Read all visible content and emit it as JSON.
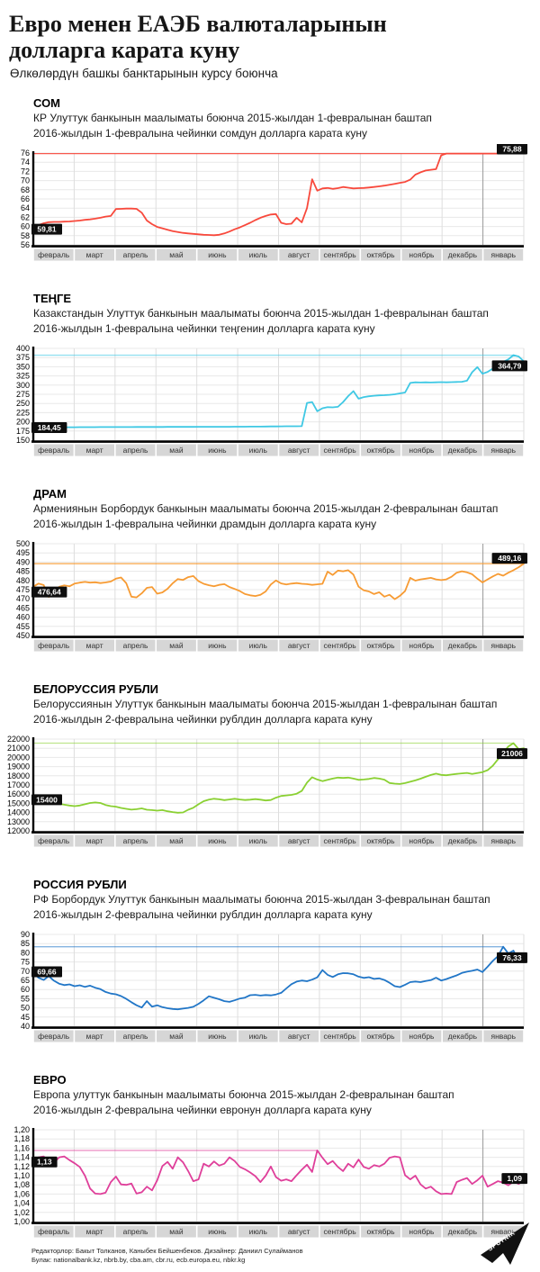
{
  "header": {
    "title_line1": "Евро менен ЕАЭБ валюталарынын",
    "title_line2": "долларга карата куну",
    "subtitle": "Өлкөлөрдүн башкы банктарынын курсу боюнча"
  },
  "months": [
    "февраль",
    "март",
    "апрель",
    "май",
    "июнь",
    "июль",
    "август",
    "сентябрь",
    "октябрь",
    "ноябрь",
    "декабрь",
    "январь"
  ],
  "chart_data": [
    {
      "type": "line",
      "title": "СОМ",
      "desc1": "КР Улуттук банкынын маалыматы боюнча 2015-жылдан 1-февралынан баштап",
      "desc2": "2016-жылдын 1-февралына чейинки сомдун долларга карата куну",
      "color": "#f8493c",
      "xlabel": "",
      "ylabel": "",
      "ylim": [
        56,
        76
      ],
      "ytick_labels": [
        "76",
        "74",
        "72",
        "70",
        "68",
        "66",
        "64",
        "62",
        "60",
        "58",
        "56"
      ],
      "start_label": "59,81",
      "end_label": "75,88",
      "start_dy": 2,
      "end_dy": -8,
      "values": [
        59.81,
        60.3,
        60.7,
        60.95,
        61.0,
        61.0,
        61.05,
        61.1,
        61.2,
        61.3,
        61.45,
        61.55,
        61.7,
        61.9,
        62.15,
        62.3,
        63.8,
        63.85,
        63.9,
        63.9,
        63.85,
        63.0,
        61.3,
        60.5,
        59.9,
        59.6,
        59.3,
        59.0,
        58.8,
        58.6,
        58.5,
        58.4,
        58.3,
        58.2,
        58.15,
        58.1,
        58.2,
        58.5,
        58.9,
        59.4,
        59.8,
        60.3,
        60.8,
        61.4,
        61.9,
        62.3,
        62.6,
        62.7,
        60.8,
        60.5,
        60.6,
        61.9,
        60.9,
        64.0,
        70.3,
        67.8,
        68.3,
        68.4,
        68.2,
        68.35,
        68.6,
        68.45,
        68.3,
        68.35,
        68.4,
        68.5,
        68.6,
        68.75,
        68.9,
        69.1,
        69.3,
        69.5,
        69.7,
        70.2,
        71.3,
        71.8,
        72.2,
        72.35,
        72.5,
        75.5,
        75.88,
        75.88,
        75.88,
        75.88,
        75.88,
        75.88,
        75.88,
        75.88,
        75.88,
        75.88,
        75.88,
        75.88,
        75.88,
        75.88,
        75.88,
        75.88
      ]
    },
    {
      "type": "line",
      "title": "ТЕҢГЕ",
      "desc1": "Казакстандын Улуттук банкынын маалыматы боюнча 2015-жылдан 1-февралынан баштап",
      "desc2": "2016-жылдын 1-февралына чейинки теңгенин долларга карата куну",
      "color": "#3fc8e4",
      "xlabel": "",
      "ylabel": "",
      "ylim": [
        150,
        400
      ],
      "ytick_labels": [
        "400",
        "375",
        "350",
        "325",
        "300",
        "275",
        "250",
        "225",
        "200",
        "175",
        "150"
      ],
      "start_label": "184,45",
      "end_label": "364,79",
      "start_dy": 0,
      "end_dy": 5,
      "values": [
        184.45,
        185.0,
        185.1,
        185.2,
        185.3,
        185.3,
        185.4,
        185.4,
        185.4,
        185.5,
        185.5,
        185.6,
        185.6,
        185.7,
        185.7,
        185.8,
        185.8,
        185.8,
        185.9,
        185.9,
        186.0,
        186.0,
        186.0,
        186.1,
        186.1,
        186.1,
        186.2,
        186.2,
        186.2,
        186.3,
        186.3,
        186.3,
        186.4,
        186.4,
        186.5,
        186.5,
        186.5,
        186.6,
        186.6,
        186.7,
        186.7,
        186.8,
        186.9,
        187.0,
        187.1,
        187.2,
        187.4,
        187.6,
        187.8,
        187.9,
        188.0,
        188.1,
        188.2,
        251.5,
        254.0,
        229.0,
        237.0,
        240.0,
        239.5,
        241.0,
        254.0,
        270.0,
        283.5,
        263.0,
        267.5,
        269.5,
        271.0,
        272.0,
        272.5,
        273.5,
        275.0,
        277.5,
        280.0,
        306.0,
        307.5,
        307.0,
        307.5,
        307.0,
        307.5,
        308.0,
        307.5,
        308.0,
        308.5,
        309.0,
        312.0,
        335.0,
        349.0,
        331.0,
        336.0,
        345.0,
        357.0,
        363.0,
        370.0,
        381.5,
        378.0,
        364.79
      ]
    },
    {
      "type": "line",
      "title": "ДРАМ",
      "desc1": "Армениянын Борбордук банкынын маалыматы боюнча 2015-жылдан 2-февралынан баштап",
      "desc2": "2016-жылдын 1-февралына чейинки драмдын долларга карата куну",
      "color": "#f79b33",
      "xlabel": "",
      "ylabel": "",
      "ylim": [
        450,
        500
      ],
      "ytick_labels": [
        "500",
        "495",
        "490",
        "485",
        "480",
        "475",
        "470",
        "465",
        "460",
        "455",
        "450"
      ],
      "start_label": "476,64",
      "end_label": "489,16",
      "start_dy": 6,
      "end_dy": -6,
      "values": [
        476.64,
        478.3,
        477.5,
        471.0,
        474.0,
        476.5,
        477.3,
        476.8,
        478.3,
        478.8,
        479.2,
        478.8,
        479.0,
        478.6,
        478.9,
        479.4,
        481.0,
        481.6,
        478.5,
        471.2,
        470.8,
        473.0,
        476.0,
        476.4,
        472.8,
        473.5,
        475.5,
        478.5,
        480.8,
        480.3,
        481.8,
        482.4,
        479.6,
        478.2,
        477.4,
        476.8,
        477.6,
        478.0,
        476.4,
        475.4,
        474.2,
        472.6,
        471.9,
        471.5,
        472.2,
        474.0,
        477.8,
        480.0,
        478.4,
        477.8,
        478.3,
        478.6,
        478.2,
        478.0,
        477.6,
        477.9,
        478.2,
        484.8,
        483.0,
        485.4,
        485.0,
        485.6,
        483.2,
        476.6,
        474.6,
        474.0,
        472.6,
        473.6,
        471.2,
        472.2,
        469.8,
        471.6,
        474.2,
        481.4,
        479.9,
        480.6,
        481.0,
        481.4,
        480.6,
        480.2,
        480.6,
        482.0,
        484.2,
        485.0,
        484.4,
        483.4,
        481.0,
        478.9,
        480.6,
        482.2,
        483.6,
        482.6,
        484.2,
        485.6,
        487.2,
        489.16
      ]
    },
    {
      "type": "line",
      "title": "БЕЛОРУССИЯ РУБЛИ",
      "desc1": "Белоруссиянын Улуттук банкынын маалыматы боюнча 2015-жылдан 1-февралынан баштап",
      "desc2": "2016-жылдын 2-февралына чейинки рублдин долларга карата куну",
      "color": "#8ad032",
      "xlabel": "",
      "ylabel": "",
      "ylim": [
        12000,
        22000
      ],
      "ytick_labels": [
        "22000",
        "21000",
        "20000",
        "19000",
        "18000",
        "17000",
        "16000",
        "15000",
        "14000",
        "13000",
        "12000"
      ],
      "start_label": "15400",
      "end_label": "21006",
      "start_dy": 0,
      "end_dy": 6,
      "values": [
        15400,
        15320,
        15200,
        15150,
        15080,
        14950,
        14850,
        14760,
        14700,
        14760,
        14900,
        15040,
        15100,
        15040,
        14820,
        14700,
        14640,
        14500,
        14400,
        14310,
        14360,
        14450,
        14300,
        14260,
        14210,
        14260,
        14140,
        14050,
        13980,
        14010,
        14300,
        14520,
        14900,
        15240,
        15400,
        15500,
        15440,
        15350,
        15420,
        15500,
        15420,
        15360,
        15400,
        15460,
        15400,
        15310,
        15360,
        15620,
        15800,
        15860,
        15920,
        16050,
        16350,
        17250,
        17840,
        17600,
        17420,
        17560,
        17700,
        17800,
        17760,
        17800,
        17700,
        17560,
        17600,
        17660,
        17760,
        17700,
        17580,
        17220,
        17150,
        17110,
        17210,
        17350,
        17500,
        17690,
        17890,
        18090,
        18240,
        18100,
        18060,
        18140,
        18210,
        18260,
        18310,
        18210,
        18300,
        18400,
        18620,
        19100,
        19800,
        20500,
        21200,
        21560,
        20900,
        21006
      ]
    },
    {
      "type": "line",
      "title": "РОССИЯ РУБЛИ",
      "desc1": "РФ Борбордук Улуттук банкынын маалыматы боюнча 2015-жылдан 3-февралынан баштап",
      "desc2": "2016-жылдын 2-февралына чейинки рублдин долларга карата куну",
      "color": "#2176c7",
      "xlabel": "",
      "ylabel": "",
      "ylim": [
        40,
        90
      ],
      "ytick_labels": [
        "90",
        "85",
        "80",
        "75",
        "70",
        "65",
        "60",
        "55",
        "50",
        "45",
        "40"
      ],
      "start_label": "69,66",
      "end_label": "76,33",
      "start_dy": 0,
      "end_dy": -2,
      "values": [
        69.66,
        66.4,
        65.2,
        67.3,
        64.8,
        63.2,
        62.4,
        62.8,
        61.8,
        62.3,
        61.4,
        62.1,
        61.0,
        60.2,
        58.7,
        57.8,
        57.4,
        56.4,
        54.9,
        53.1,
        51.4,
        50.2,
        53.7,
        50.7,
        51.4,
        50.4,
        49.8,
        49.4,
        49.2,
        49.6,
        50.0,
        50.6,
        52.2,
        54.1,
        56.3,
        55.5,
        54.7,
        53.7,
        53.3,
        54.1,
        55.1,
        55.6,
        56.9,
        57.1,
        56.7,
        57.0,
        56.8,
        57.3,
        58.2,
        60.6,
        62.9,
        64.3,
        64.9,
        64.5,
        65.4,
        66.6,
        70.6,
        68.0,
        66.8,
        68.3,
        68.9,
        68.8,
        68.3,
        67.0,
        66.3,
        66.7,
        65.8,
        66.1,
        65.2,
        63.7,
        61.8,
        61.3,
        62.6,
        64.0,
        64.3,
        64.0,
        64.6,
        65.1,
        66.4,
        64.9,
        65.7,
        66.7,
        67.7,
        69.0,
        69.7,
        70.2,
        70.9,
        69.5,
        72.4,
        75.6,
        78.2,
        83.3,
        79.6,
        81.2,
        75.3,
        76.33
      ]
    },
    {
      "type": "line",
      "title": "ЕВРО",
      "desc1": "Европа улуттук банкынын маалыматы боюнча 2015-жылдан 2-февралынан баштап",
      "desc2": "2016-жылдын 2-февралына чейинки евронун долларга карата куну",
      "color": "#df3f9a",
      "xlabel": "",
      "ylabel": "",
      "ylim": [
        1.0,
        1.2
      ],
      "ytick_labels": [
        "1,20",
        "1,18",
        "1,16",
        "1,14",
        "1,12",
        "1,10",
        "1,08",
        "1,06",
        "1,04",
        "1,02",
        "1,00"
      ],
      "start_label": "1,13",
      "end_label": "1,09",
      "start_dy": 0,
      "end_dy": -2,
      "values": [
        1.13,
        1.14,
        1.142,
        1.131,
        1.128,
        1.14,
        1.142,
        1.134,
        1.127,
        1.119,
        1.1,
        1.072,
        1.061,
        1.06,
        1.063,
        1.086,
        1.098,
        1.081,
        1.08,
        1.083,
        1.061,
        1.064,
        1.076,
        1.068,
        1.09,
        1.121,
        1.13,
        1.115,
        1.14,
        1.129,
        1.11,
        1.088,
        1.092,
        1.126,
        1.12,
        1.131,
        1.122,
        1.126,
        1.14,
        1.132,
        1.119,
        1.114,
        1.107,
        1.099,
        1.086,
        1.1,
        1.12,
        1.097,
        1.089,
        1.092,
        1.088,
        1.101,
        1.113,
        1.124,
        1.108,
        1.155,
        1.139,
        1.125,
        1.132,
        1.119,
        1.11,
        1.126,
        1.118,
        1.135,
        1.119,
        1.115,
        1.123,
        1.12,
        1.126,
        1.139,
        1.142,
        1.14,
        1.101,
        1.092,
        1.1,
        1.081,
        1.072,
        1.076,
        1.066,
        1.06,
        1.061,
        1.06,
        1.086,
        1.091,
        1.095,
        1.082,
        1.09,
        1.1,
        1.076,
        1.082,
        1.088,
        1.085,
        1.079,
        1.087,
        1.082,
        1.09
      ]
    }
  ],
  "footer": {
    "line1": "Редакторлор: Бакыт Толканов, Каныбек Бейшенбеков. Дизайнер: Даниил Сулайманов",
    "line2": "Булак: nationalbank.kz, nbrb.by, cba.am, cbr.ru, ecb.europa.eu, nbkr.kg",
    "logo_text": "SPUTNIK"
  }
}
